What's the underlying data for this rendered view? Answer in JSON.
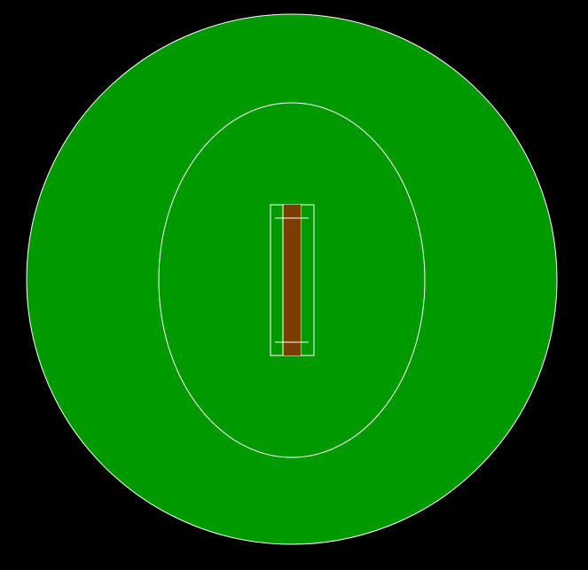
{
  "colors": {
    "background": "#000000",
    "outfield": "#009900",
    "boundary_line": "#ffffff",
    "inner_circle_line": "#ffffff",
    "pitch": "#7a3e00",
    "crease_line": "#ffffff"
  }
}
